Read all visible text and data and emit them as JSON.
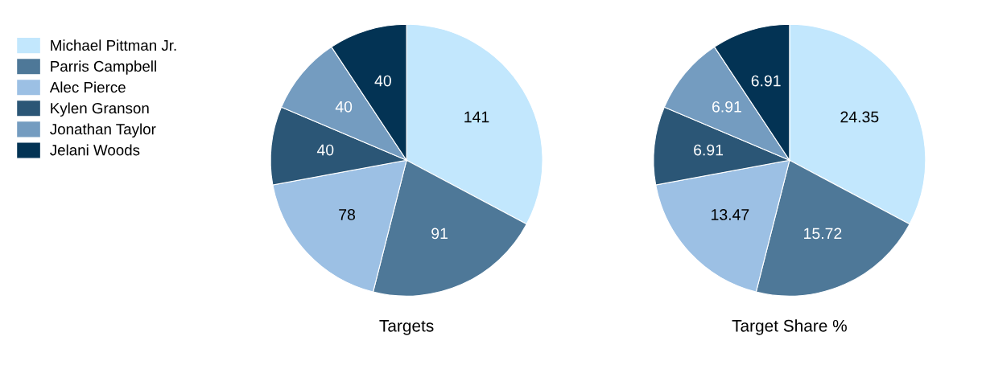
{
  "chart_data": [
    {
      "type": "pie",
      "title": "Targets",
      "categories": [
        "Michael Pittman Jr.",
        "Parris Campbell",
        "Alec Pierce",
        "Kylen Granson",
        "Jonathan Taylor",
        "Jelani Woods"
      ],
      "values": [
        141,
        91,
        78,
        40,
        40,
        40
      ],
      "colors": [
        "#c2e7fd",
        "#4e7898",
        "#9cc0e4",
        "#2b5676",
        "#749cc0",
        "#033354"
      ],
      "data_labels": true,
      "legend": "left"
    },
    {
      "type": "pie",
      "title": "Target Share %",
      "categories": [
        null,
        null,
        null,
        null,
        null,
        null
      ],
      "values": [
        24.35,
        15.72,
        13.47,
        6.91,
        6.91,
        6.91
      ],
      "colors": [
        "#c2e7fd",
        "#4e7898",
        "#9cc0e4",
        "#2b5676",
        "#749cc0",
        "#033354"
      ],
      "data_labels": true
    }
  ]
}
